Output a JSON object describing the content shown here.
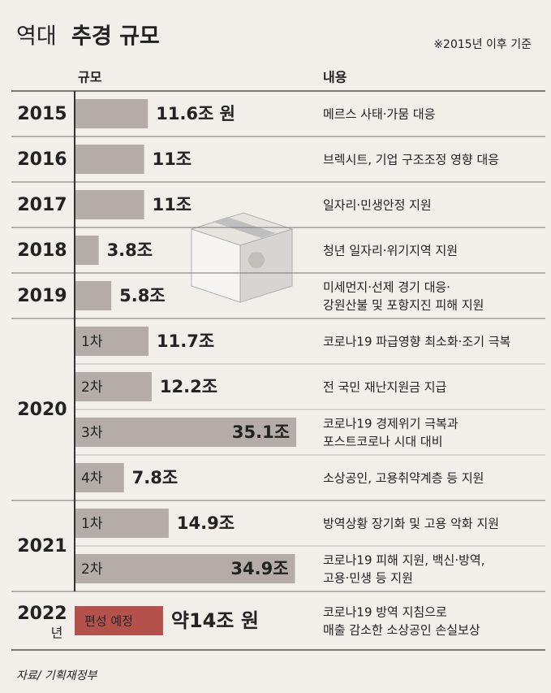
{
  "chart_data": {
    "type": "bar",
    "title_light": "역대",
    "title": "추경 규모",
    "note": "※2015년 이후 기준",
    "header_size": "규모",
    "header_content": "내용",
    "color": "#b3aca8",
    "highlight_color": "#b5514b",
    "years": [
      {
        "label": "2015",
        "items": [
          {
            "value": 11.6,
            "value_label": "11.6조 원",
            "desc": [
              "메르스 사태·가뭄 대응"
            ]
          }
        ]
      },
      {
        "label": "2016",
        "items": [
          {
            "value": 11,
            "value_label": "11조",
            "desc": [
              "브렉시트, 기업 구조조정 영향 대응"
            ]
          }
        ]
      },
      {
        "label": "2017",
        "items": [
          {
            "value": 11,
            "value_label": "11조",
            "desc": [
              "일자리·민생안정 지원"
            ]
          }
        ]
      },
      {
        "label": "2018",
        "items": [
          {
            "value": 3.8,
            "value_label": "3.8조",
            "desc": [
              "청년 일자리·위기지역 지원"
            ]
          }
        ]
      },
      {
        "label": "2019",
        "items": [
          {
            "value": 5.8,
            "value_label": "5.8조",
            "desc": [
              "미세먼지·선제 경기 대응·",
              "강원산불 및 포항지진 피해 지원"
            ]
          }
        ]
      },
      {
        "label": "2020",
        "items": [
          {
            "round": "1차",
            "value": 11.7,
            "value_label": "11.7조",
            "desc": [
              "코로나19 파급영향 최소화·조기 극복"
            ]
          },
          {
            "round": "2차",
            "value": 12.2,
            "value_label": "12.2조",
            "desc": [
              "전 국민 재난지원금 지급"
            ]
          },
          {
            "round": "3차",
            "value": 35.1,
            "value_label": "35.1조",
            "desc": [
              "코로나19 경제위기 극복과",
              "포스트코로나 시대 대비"
            ]
          },
          {
            "round": "4차",
            "value": 7.8,
            "value_label": "7.8조",
            "desc": [
              "소상공인, 고용취약계층 등 지원"
            ]
          }
        ]
      },
      {
        "label": "2021",
        "items": [
          {
            "round": "1차",
            "value": 14.9,
            "value_label": "14.9조",
            "desc": [
              "방역상황 장기화 및 고용 악화 지원"
            ]
          },
          {
            "round": "2차",
            "value": 34.9,
            "value_label": "34.9조",
            "desc": [
              "코로나19 피해 지원, 백신·방역,",
              "고용·민생 등 지원"
            ]
          }
        ]
      },
      {
        "label": "2022",
        "unit": "년",
        "items": [
          {
            "tag": "편성 예정",
            "value": 14,
            "value_label": "약14조 원",
            "desc": [
              "코로나19 방역 지침으로",
              "매출 감소한 소상공인 손실보상"
            ]
          }
        ]
      }
    ],
    "source": "자료/ 기획재정부"
  }
}
